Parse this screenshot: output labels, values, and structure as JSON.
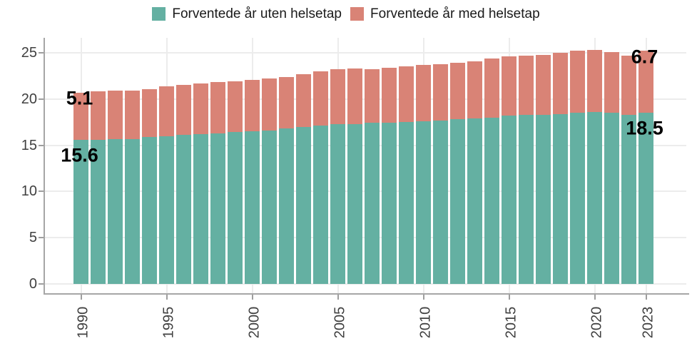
{
  "colors": {
    "background": "#ffffff",
    "grid": "#ececec",
    "axis_line": "#a6a6a6",
    "tick_text": "#404040",
    "annotation_text": "#000000",
    "series_uten": "#64b0a2",
    "series_med": "#d98376"
  },
  "legend": {
    "items": [
      {
        "label": "Forventede år uten helsetap",
        "color": "#64b0a2"
      },
      {
        "label": "Forventede år med helsetap",
        "color": "#d98376"
      }
    ]
  },
  "chart_data": {
    "type": "bar",
    "stacked": true,
    "title": "",
    "xlabel": "",
    "ylabel": "",
    "grid": true,
    "legend_position": "top",
    "ylim": [
      0,
      25
    ],
    "yticks": [
      0,
      5,
      10,
      15,
      20,
      25
    ],
    "xtick_years": [
      1990,
      1995,
      2000,
      2005,
      2010,
      2015,
      2020,
      2023
    ],
    "categories": [
      1990,
      1991,
      1992,
      1993,
      1994,
      1995,
      1996,
      1997,
      1998,
      1999,
      2000,
      2001,
      2002,
      2003,
      2004,
      2005,
      2006,
      2007,
      2008,
      2009,
      2010,
      2011,
      2012,
      2013,
      2014,
      2015,
      2016,
      2017,
      2018,
      2019,
      2020,
      2021,
      2022,
      2023
    ],
    "series": [
      {
        "name": "Forventede år uten helsetap",
        "color": "#64b0a2",
        "values": [
          15.6,
          15.6,
          15.7,
          15.7,
          15.9,
          16.0,
          16.1,
          16.2,
          16.3,
          16.4,
          16.5,
          16.6,
          16.8,
          17.0,
          17.1,
          17.3,
          17.3,
          17.4,
          17.4,
          17.5,
          17.6,
          17.7,
          17.8,
          17.9,
          18.0,
          18.2,
          18.3,
          18.3,
          18.4,
          18.5,
          18.6,
          18.5,
          18.3,
          18.5
        ]
      },
      {
        "name": "Forventede år med helsetap",
        "color": "#d98376",
        "values": [
          5.1,
          5.2,
          5.2,
          5.2,
          5.2,
          5.4,
          5.4,
          5.5,
          5.5,
          5.5,
          5.6,
          5.6,
          5.6,
          5.7,
          5.9,
          5.9,
          6.0,
          5.8,
          6.0,
          6.0,
          6.1,
          6.1,
          6.1,
          6.2,
          6.4,
          6.4,
          6.4,
          6.5,
          6.6,
          6.7,
          6.7,
          6.6,
          6.4,
          6.7
        ]
      }
    ],
    "annotations": [
      {
        "text": "5.1",
        "year": 1990,
        "series": 1
      },
      {
        "text": "15.6",
        "year": 1990,
        "series": 0
      },
      {
        "text": "6.7",
        "year": 2023,
        "series": 1
      },
      {
        "text": "18.5",
        "year": 2023,
        "series": 0
      }
    ]
  }
}
